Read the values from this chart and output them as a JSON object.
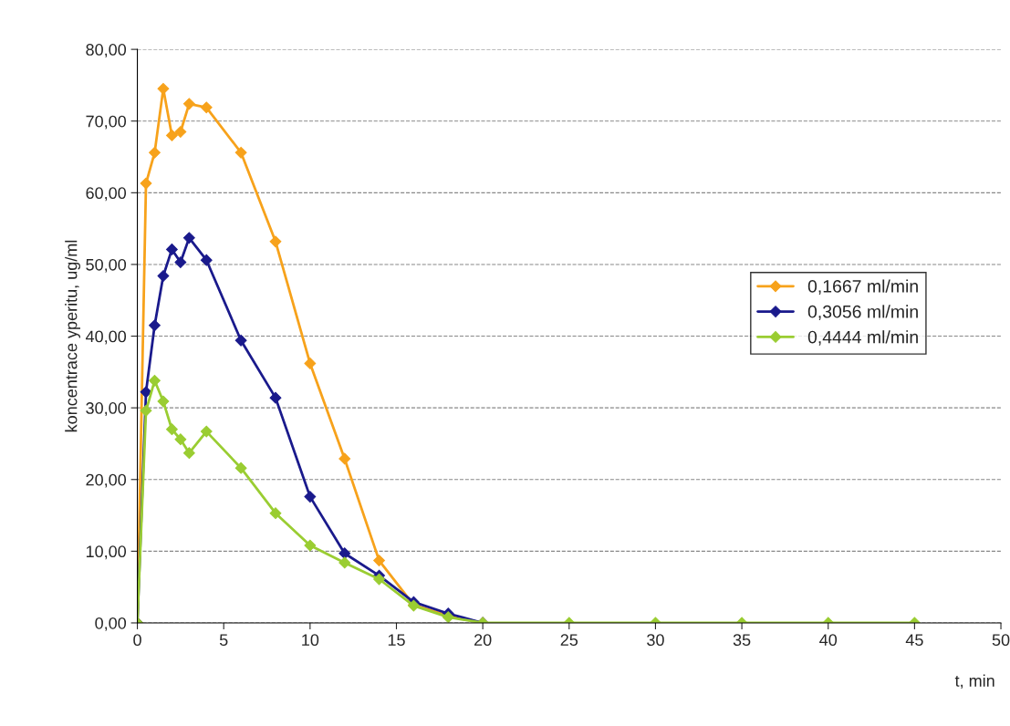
{
  "chart_data": {
    "type": "line",
    "xlabel": "t, min",
    "ylabel": "koncentrace yperitu, ug/ml",
    "x": [
      0,
      0.5,
      1,
      1.5,
      2,
      2.5,
      3,
      4,
      6,
      8,
      10,
      12,
      14,
      16,
      18,
      20,
      25,
      30,
      35,
      40,
      45
    ],
    "series": [
      {
        "name": "0,1667 ml/min",
        "color": "#f7a21b",
        "values": [
          0,
          61.3,
          65.6,
          74.5,
          68.0,
          68.5,
          72.4,
          71.9,
          65.6,
          53.2,
          36.2,
          22.9,
          8.7,
          2.5,
          1.0,
          0,
          null,
          null,
          null,
          null,
          null
        ]
      },
      {
        "name": "0,3056 ml/min",
        "color": "#1a1a8c",
        "values": [
          0,
          32.2,
          41.5,
          48.4,
          52.1,
          50.3,
          53.7,
          50.6,
          39.4,
          31.4,
          17.6,
          9.7,
          6.6,
          2.9,
          1.3,
          0,
          null,
          null,
          null,
          null,
          null
        ]
      },
      {
        "name": "0,4444 ml/min",
        "color": "#9acd32",
        "values": [
          0,
          29.6,
          33.8,
          30.9,
          27.0,
          25.6,
          23.7,
          26.7,
          21.6,
          15.3,
          10.8,
          8.4,
          6.1,
          2.4,
          0.8,
          0,
          0,
          0,
          0,
          0,
          0
        ]
      }
    ],
    "xlim": [
      0,
      50
    ],
    "xticks": [
      0,
      5,
      10,
      15,
      20,
      25,
      30,
      35,
      40,
      45,
      50
    ],
    "ylim": [
      0,
      80
    ],
    "yticks": [
      {
        "value": 0,
        "label": "0,00"
      },
      {
        "value": 10,
        "label": "10,00"
      },
      {
        "value": 20,
        "label": "20,00"
      },
      {
        "value": 30,
        "label": "30,00"
      },
      {
        "value": 40,
        "label": "40,00"
      },
      {
        "value": 50,
        "label": "50,00"
      },
      {
        "value": 60,
        "label": "60,00"
      },
      {
        "value": 70,
        "label": "70,00"
      },
      {
        "value": 80,
        "label": "80,00"
      }
    ],
    "grid": "y",
    "legend": "right",
    "marker": "diamond",
    "line_style": "solid"
  }
}
